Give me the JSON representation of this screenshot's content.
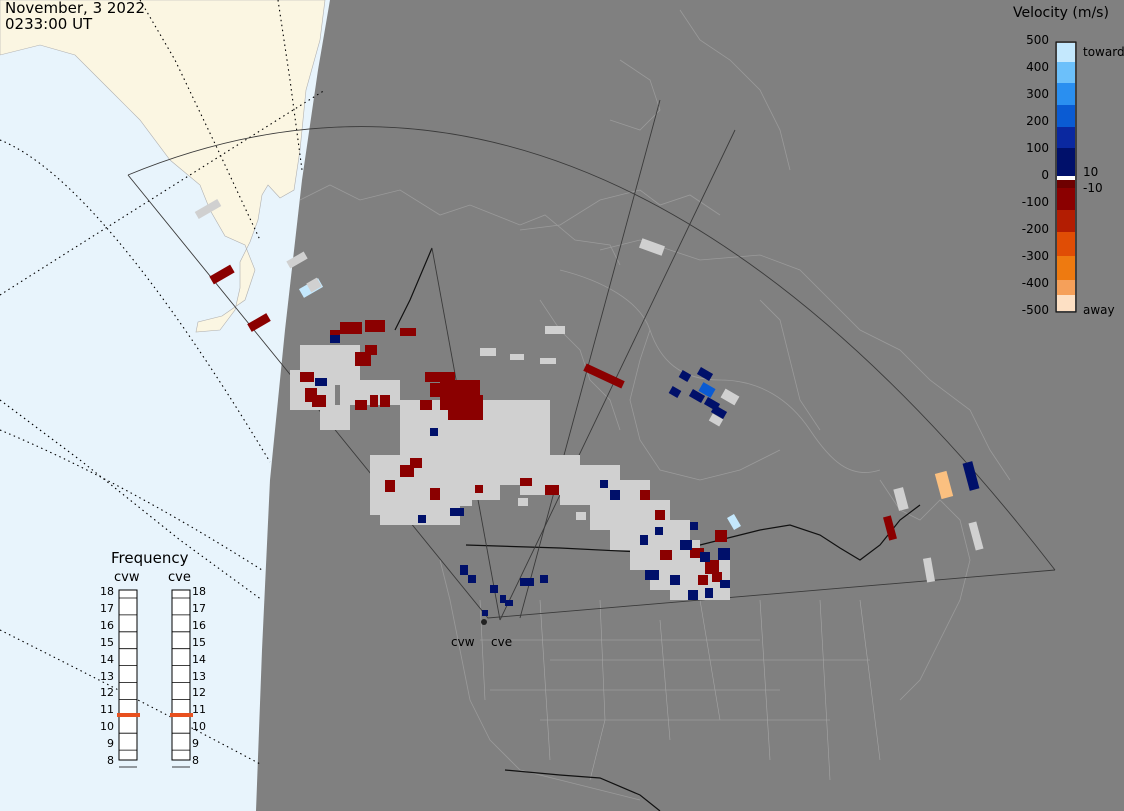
{
  "header": {
    "date": "November, 3 2022",
    "time": "0233:00 UT"
  },
  "colorbar": {
    "title": "Velocity (m/s)",
    "labels": [
      "500",
      "400",
      "300",
      "200",
      "100",
      "10",
      "0",
      "-10",
      "-100",
      "-200",
      "-300",
      "-400",
      "-500"
    ],
    "toward_label": "toward",
    "away_label": "away",
    "colors": [
      "#fde0c4",
      "#f5a05a",
      "#ee7a10",
      "#e04d05",
      "#b31d02",
      "#8b0000",
      "#6e0000",
      "#ffffff",
      "#00106a",
      "#0a28a0",
      "#0a5bd3",
      "#2a8ff0",
      "#6cc0fa",
      "#c4e8fd"
    ]
  },
  "frequency": {
    "title": "Frequency",
    "radars": [
      {
        "name": "cvw",
        "value_mhz": 10.9
      },
      {
        "name": "cve",
        "value_mhz": 10.9
      }
    ],
    "ticks": [
      "18",
      "17",
      "16",
      "15",
      "14",
      "13",
      "12",
      "11",
      "10",
      "9",
      "8"
    ],
    "indicator_color": "#e8501e"
  },
  "sites": [
    {
      "name": "cvw"
    },
    {
      "name": "cve"
    }
  ],
  "map_colors": {
    "night": "#808080",
    "day_land": "#fbf6e2",
    "day_ocean": "#e8f4fc",
    "ground_scatter": "#d0d0d0"
  }
}
